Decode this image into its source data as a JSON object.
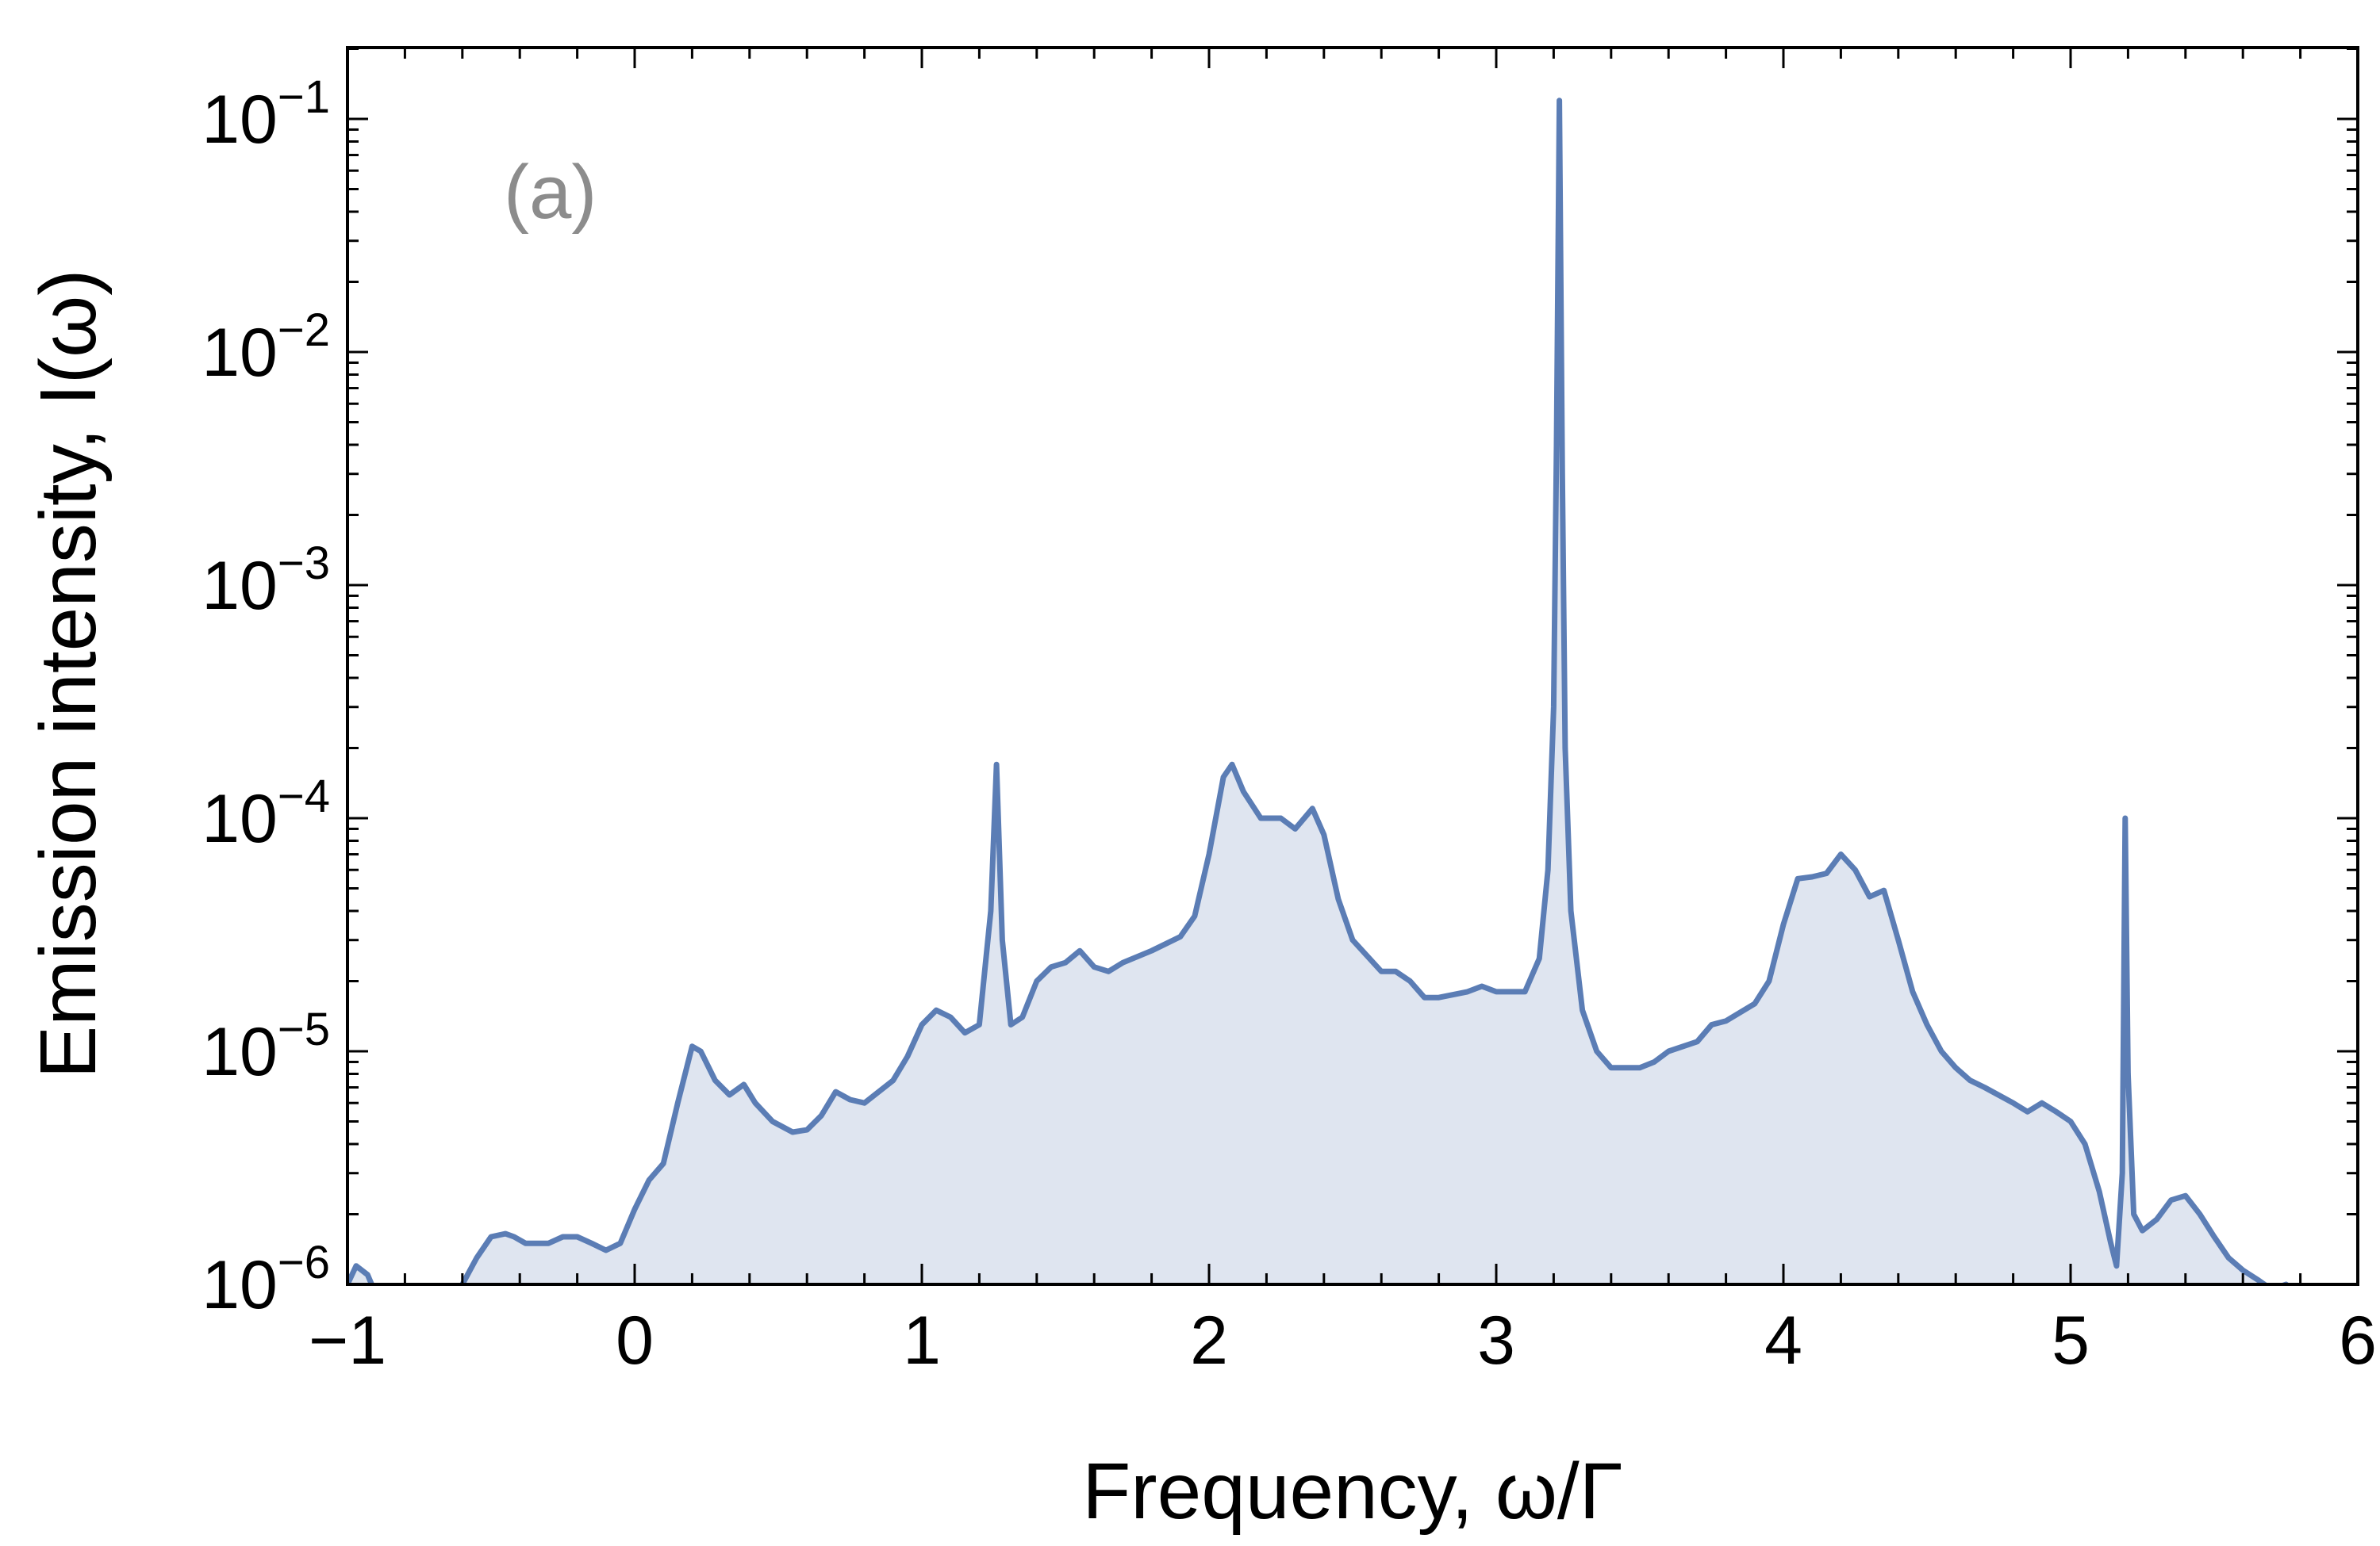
{
  "chart_data": {
    "type": "area",
    "panel_label": "(a)",
    "title": "",
    "xlabel": "Frequency, ω/Γ",
    "ylabel": "Emission intensity, I(ω)",
    "xlim": [
      -1,
      6
    ],
    "ylim": [
      1e-06,
      0.2
    ],
    "yscale": "log",
    "x_ticks": [
      -1,
      0,
      1,
      2,
      3,
      4,
      5,
      6
    ],
    "x_tick_labels": [
      "−1",
      "0",
      "1",
      "2",
      "3",
      "4",
      "5",
      "6"
    ],
    "y_ticks": [
      1e-06,
      1e-05,
      0.0001,
      0.001,
      0.01,
      0.1
    ],
    "y_tick_labels": [
      {
        "base": "10",
        "exp": "−6"
      },
      {
        "base": "10",
        "exp": "−5"
      },
      {
        "base": "10",
        "exp": "−4"
      },
      {
        "base": "10",
        "exp": "−3"
      },
      {
        "base": "10",
        "exp": "−2"
      },
      {
        "base": "10",
        "exp": "−1"
      }
    ],
    "grid": false,
    "line_color": "#5b7db5",
    "fill_color": "#dfe5f0",
    "panel_label_color": "#8c8c8c",
    "series": [
      {
        "x": [
          -1.0,
          -0.97,
          -0.93,
          -0.9,
          -0.87,
          -0.85,
          -0.8,
          -0.75,
          -0.72,
          -0.68,
          -0.6,
          -0.55,
          -0.5,
          -0.45,
          -0.42,
          -0.38,
          -0.3,
          -0.25,
          -0.2,
          -0.15,
          -0.1,
          -0.05,
          0.0,
          0.05,
          0.1,
          0.15,
          0.2,
          0.23,
          0.28,
          0.33,
          0.38,
          0.42,
          0.48,
          0.55,
          0.6,
          0.65,
          0.7,
          0.75,
          0.8,
          0.9,
          0.95,
          1.0,
          1.05,
          1.1,
          1.15,
          1.2,
          1.24,
          1.26,
          1.28,
          1.31,
          1.35,
          1.4,
          1.45,
          1.5,
          1.55,
          1.6,
          1.65,
          1.7,
          1.8,
          1.9,
          1.95,
          2.0,
          2.05,
          2.08,
          2.12,
          2.18,
          2.25,
          2.3,
          2.36,
          2.4,
          2.45,
          2.5,
          2.6,
          2.65,
          2.7,
          2.75,
          2.8,
          2.9,
          2.95,
          3.0,
          3.05,
          3.1,
          3.15,
          3.18,
          3.2,
          3.21,
          3.22,
          3.23,
          3.24,
          3.26,
          3.3,
          3.35,
          3.4,
          3.45,
          3.5,
          3.55,
          3.6,
          3.7,
          3.75,
          3.8,
          3.9,
          3.95,
          4.0,
          4.05,
          4.1,
          4.15,
          4.2,
          4.25,
          4.3,
          4.35,
          4.4,
          4.45,
          4.5,
          4.55,
          4.6,
          4.65,
          4.7,
          4.8,
          4.85,
          4.9,
          4.95,
          5.0,
          5.05,
          5.1,
          5.14,
          5.16,
          5.18,
          5.19,
          5.2,
          5.22,
          5.25,
          5.3,
          5.35,
          5.4,
          5.45,
          5.5,
          5.55,
          5.6,
          5.65,
          5.7,
          5.75,
          5.8,
          5.85
        ],
        "y": [
          1e-06,
          1.2e-06,
          1.1e-06,
          9e-07,
          8e-07,
          8e-07,
          8e-07,
          8e-07,
          8e-07,
          8e-07,
          1e-06,
          1.3e-06,
          1.6e-06,
          1.65e-06,
          1.6e-06,
          1.5e-06,
          1.5e-06,
          1.6e-06,
          1.6e-06,
          1.5e-06,
          1.4e-06,
          1.5e-06,
          2.1e-06,
          2.8e-06,
          3.3e-06,
          6e-06,
          1.05e-05,
          1e-05,
          7.5e-06,
          6.5e-06,
          7.2e-06,
          6e-06,
          5e-06,
          4.5e-06,
          4.6e-06,
          5.3e-06,
          6.7e-06,
          6.2e-06,
          6e-06,
          7.5e-06,
          9.5e-06,
          1.3e-05,
          1.5e-05,
          1.4e-05,
          1.2e-05,
          1.3e-05,
          4e-05,
          0.00017,
          3e-05,
          1.3e-05,
          1.4e-05,
          2e-05,
          2.3e-05,
          2.4e-05,
          2.7e-05,
          2.3e-05,
          2.2e-05,
          2.4e-05,
          2.7e-05,
          3.1e-05,
          3.8e-05,
          7e-05,
          0.00015,
          0.00017,
          0.00013,
          0.0001,
          0.0001,
          9e-05,
          0.00011,
          8.5e-05,
          4.5e-05,
          3e-05,
          2.2e-05,
          2.2e-05,
          2e-05,
          1.7e-05,
          1.7e-05,
          1.8e-05,
          1.9e-05,
          1.8e-05,
          1.8e-05,
          1.8e-05,
          2.5e-05,
          6e-05,
          0.0003,
          0.004,
          0.12,
          0.003,
          0.0002,
          4e-05,
          1.5e-05,
          1e-05,
          8.5e-06,
          8.5e-06,
          8.5e-06,
          9e-06,
          1e-05,
          1.1e-05,
          1.3e-05,
          1.35e-05,
          1.6e-05,
          2e-05,
          3.5e-05,
          5.5e-05,
          5.6e-05,
          5.8e-05,
          7e-05,
          6e-05,
          4.6e-05,
          4.9e-05,
          3e-05,
          1.8e-05,
          1.3e-05,
          1e-05,
          8.5e-06,
          7.5e-06,
          7e-06,
          6e-06,
          5.5e-06,
          6e-06,
          5.5e-06,
          5e-06,
          4e-06,
          2.5e-06,
          1.5e-06,
          1.2e-06,
          3e-06,
          0.0001,
          8e-06,
          2e-06,
          1.7e-06,
          1.9e-06,
          2.3e-06,
          2.4e-06,
          2e-06,
          1.6e-06,
          1.3e-06,
          1.15e-06,
          1.05e-06,
          9.5e-07,
          1e-06,
          9e-07,
          8e-07
        ]
      }
    ]
  }
}
